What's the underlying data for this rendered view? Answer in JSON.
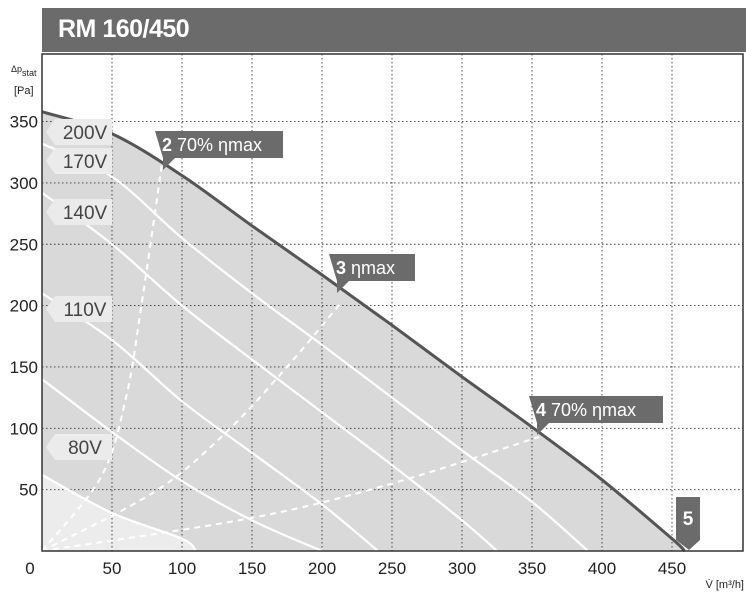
{
  "chart_data": {
    "type": "line",
    "title": "RM 160/450",
    "xlabel": "V̇ [m³/h]",
    "ylabel_top": "Δp",
    "ylabel_sub": "stat",
    "ylabel_unit": "[Pa]",
    "xlim": [
      0,
      500
    ],
    "ylim": [
      0,
      390
    ],
    "grid": true,
    "x_ticks": [
      0,
      50,
      100,
      150,
      200,
      250,
      300,
      350,
      400,
      450
    ],
    "y_ticks": [
      50,
      100,
      150,
      200,
      250,
      300,
      350
    ],
    "max_curve": {
      "name": "200V",
      "points": [
        [
          0,
          358
        ],
        [
          50,
          340
        ],
        [
          100,
          306
        ],
        [
          150,
          265
        ],
        [
          200,
          225
        ],
        [
          250,
          184
        ],
        [
          300,
          142
        ],
        [
          350,
          101
        ],
        [
          400,
          58
        ],
        [
          450,
          10
        ],
        [
          459,
          0
        ]
      ]
    },
    "speed_curves": [
      {
        "name": "170V",
        "points": [
          [
            0,
            332
          ],
          [
            50,
            305
          ],
          [
            100,
            255
          ],
          [
            150,
            210
          ],
          [
            200,
            168
          ],
          [
            250,
            125
          ],
          [
            300,
            82
          ],
          [
            350,
            40
          ],
          [
            390,
            0
          ]
        ]
      },
      {
        "name": "140V",
        "points": [
          [
            0,
            292
          ],
          [
            50,
            250
          ],
          [
            100,
            200
          ],
          [
            150,
            156
          ],
          [
            200,
            113
          ],
          [
            250,
            70
          ],
          [
            300,
            25
          ],
          [
            325,
            0
          ]
        ]
      },
      {
        "name": "110V",
        "points": [
          [
            0,
            210
          ],
          [
            50,
            172
          ],
          [
            100,
            122
          ],
          [
            150,
            80
          ],
          [
            200,
            38
          ],
          [
            240,
            0
          ]
        ]
      },
      {
        "name": "",
        "points": [
          [
            0,
            140
          ],
          [
            50,
            97
          ],
          [
            100,
            57
          ],
          [
            150,
            25
          ],
          [
            200,
            0
          ]
        ]
      },
      {
        "name": "80V",
        "points": [
          [
            0,
            62
          ],
          [
            50,
            31
          ],
          [
            100,
            10
          ],
          [
            110,
            0
          ]
        ]
      }
    ],
    "efficiency_lines": [
      {
        "label_num": "2",
        "label_text": "70% ηmax",
        "label_at": [
          86,
          318
        ],
        "points": [
          [
            0,
            0
          ],
          [
            42,
            60
          ],
          [
            60,
            125
          ],
          [
            71,
            200
          ],
          [
            86,
            318
          ]
        ]
      },
      {
        "label_num": "3",
        "label_text": "ηmax",
        "label_at": [
          214,
          203
        ],
        "points": [
          [
            0,
            0
          ],
          [
            80,
            48
          ],
          [
            130,
            95
          ],
          [
            175,
            150
          ],
          [
            214,
            203
          ]
        ]
      },
      {
        "label_num": "4",
        "label_text": "70% ηmax",
        "label_at": [
          355,
          93
        ],
        "points": [
          [
            0,
            0
          ],
          [
            150,
            27
          ],
          [
            250,
            55
          ],
          [
            355,
            93
          ]
        ]
      }
    ],
    "point_5": {
      "label": "5",
      "at": [
        459,
        0
      ]
    },
    "colors": {
      "area_fill": "#d9d9d9",
      "area_low_fill": "#ececec",
      "max_curve": "#555555",
      "speed_curve": "#ffffff",
      "label_box": "#6b6b6b",
      "speed_label_box": "#ebebeb",
      "grid": "#333333"
    }
  }
}
